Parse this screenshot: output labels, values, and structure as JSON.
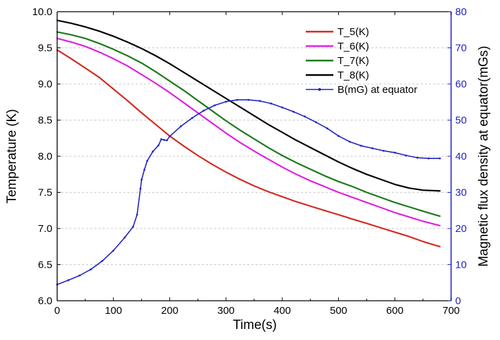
{
  "chart_data": {
    "type": "line",
    "xlabel": "Time(s)",
    "ylabel": "Temperature (K)",
    "y2label": "Magnetic flux density at equator(mGs)",
    "xlim": [
      0,
      700
    ],
    "ylim": [
      6.0,
      10.0
    ],
    "y2lim": [
      0,
      80
    ],
    "xticks": [
      "0",
      "100",
      "200",
      "300",
      "400",
      "500",
      "600",
      "700"
    ],
    "yticks": [
      "6.0",
      "6.5",
      "7.0",
      "7.5",
      "8.0",
      "8.5",
      "9.0",
      "9.5",
      "10.0"
    ],
    "y2ticks": [
      "0",
      "10",
      "20",
      "30",
      "40",
      "50",
      "60",
      "70",
      "80"
    ],
    "grid": "horizontal dashed",
    "legend_position": "top-right",
    "colors": {
      "axis_right": "#1f22c4"
    },
    "series": [
      {
        "name": "T_5(K)",
        "axis": "left",
        "color": "#d42a1f",
        "x": [
          0,
          25,
          50,
          75,
          100,
          125,
          150,
          175,
          200,
          225,
          250,
          275,
          300,
          325,
          350,
          375,
          400,
          425,
          450,
          475,
          500,
          525,
          550,
          575,
          600,
          625,
          650,
          680
        ],
        "y": [
          9.47,
          9.35,
          9.22,
          9.09,
          8.93,
          8.77,
          8.6,
          8.44,
          8.28,
          8.14,
          8.01,
          7.89,
          7.78,
          7.68,
          7.59,
          7.51,
          7.44,
          7.37,
          7.31,
          7.25,
          7.19,
          7.13,
          7.07,
          7.01,
          6.95,
          6.89,
          6.82,
          6.75
        ]
      },
      {
        "name": "T_6(K)",
        "axis": "left",
        "color": "#e020e0",
        "x": [
          0,
          25,
          50,
          75,
          100,
          125,
          150,
          175,
          200,
          225,
          250,
          275,
          300,
          325,
          350,
          375,
          400,
          425,
          450,
          475,
          500,
          525,
          550,
          575,
          600,
          625,
          650,
          680
        ],
        "y": [
          9.63,
          9.58,
          9.52,
          9.44,
          9.35,
          9.25,
          9.13,
          9.01,
          8.88,
          8.74,
          8.6,
          8.46,
          8.32,
          8.19,
          8.07,
          7.96,
          7.85,
          7.75,
          7.66,
          7.58,
          7.5,
          7.43,
          7.36,
          7.29,
          7.22,
          7.16,
          7.1,
          7.04
        ]
      },
      {
        "name": "T_7(K)",
        "axis": "left",
        "color": "#1a7a1a",
        "x": [
          0,
          25,
          50,
          75,
          100,
          125,
          150,
          175,
          200,
          225,
          250,
          275,
          300,
          325,
          350,
          375,
          400,
          425,
          450,
          475,
          500,
          525,
          550,
          575,
          600,
          625,
          650,
          680
        ],
        "y": [
          9.72,
          9.68,
          9.63,
          9.56,
          9.48,
          9.39,
          9.29,
          9.17,
          9.04,
          8.91,
          8.77,
          8.63,
          8.49,
          8.36,
          8.24,
          8.12,
          8.01,
          7.91,
          7.82,
          7.73,
          7.65,
          7.58,
          7.5,
          7.43,
          7.36,
          7.3,
          7.24,
          7.17
        ]
      },
      {
        "name": "T_8(K)",
        "axis": "left",
        "color": "#000000",
        "x": [
          0,
          25,
          50,
          75,
          100,
          125,
          150,
          175,
          200,
          225,
          250,
          275,
          300,
          325,
          350,
          375,
          400,
          425,
          450,
          475,
          500,
          525,
          550,
          575,
          600,
          625,
          650,
          680
        ],
        "y": [
          9.88,
          9.84,
          9.79,
          9.73,
          9.66,
          9.58,
          9.49,
          9.39,
          9.28,
          9.16,
          9.04,
          8.92,
          8.8,
          8.68,
          8.56,
          8.44,
          8.33,
          8.22,
          8.12,
          8.02,
          7.92,
          7.83,
          7.75,
          7.68,
          7.61,
          7.56,
          7.53,
          7.52
        ]
      },
      {
        "name": "B(mG) at equator",
        "axis": "right",
        "color": "#1f22c4",
        "x": [
          0,
          20,
          40,
          60,
          80,
          100,
          120,
          135,
          142,
          148,
          150,
          155,
          160,
          170,
          180,
          185,
          190,
          195,
          200,
          220,
          240,
          260,
          280,
          300,
          320,
          340,
          360,
          380,
          400,
          420,
          440,
          460,
          480,
          500,
          520,
          540,
          560,
          580,
          600,
          620,
          640,
          660,
          680
        ],
        "y": [
          4.5,
          5.7,
          7.0,
          8.7,
          11.0,
          13.9,
          17.5,
          20.5,
          23.8,
          31.0,
          33.5,
          36.3,
          38.7,
          41.3,
          43.0,
          44.7,
          44.5,
          44.4,
          45.5,
          48.3,
          50.6,
          52.6,
          54.1,
          55.1,
          55.6,
          55.6,
          55.3,
          54.6,
          53.5,
          52.3,
          51.0,
          49.4,
          47.7,
          45.6,
          44.0,
          42.9,
          42.2,
          41.5,
          41.0,
          40.2,
          39.6,
          39.4,
          39.4
        ]
      }
    ]
  }
}
